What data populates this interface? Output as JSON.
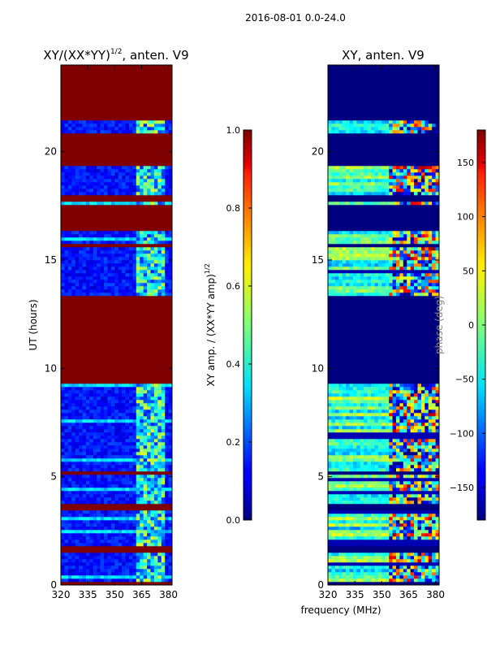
{
  "suptitle": "2016-08-01 0.0-24.0",
  "shared_xlabel": "frequency (MHz)",
  "chart_data": [
    {
      "type": "heatmap",
      "title_main": "XY/(XX*YY)",
      "title_exp": "1/2",
      "title_tail": ", anten. V9",
      "ylabel": "UT (hours)",
      "xlim": [
        320,
        382
      ],
      "ylim": [
        0,
        24
      ],
      "xticks": [
        320,
        335,
        350,
        365,
        380
      ],
      "yticks": [
        0,
        5,
        10,
        15,
        20
      ],
      "colorbar": {
        "label_main": "XY amp. / (XX*YY amp)",
        "label_exp": "1/2",
        "range": [
          0.0,
          1.0
        ],
        "ticks": [
          "0.0",
          "0.2",
          "0.4",
          "0.6",
          "0.8",
          "1.0"
        ],
        "colormap": "jet"
      },
      "flagged_hour_bands": [
        [
          0.0,
          0.2
        ],
        [
          1.55,
          1.75
        ],
        [
          3.45,
          3.7
        ],
        [
          5.15,
          5.3
        ],
        [
          9.3,
          13.4
        ],
        [
          15.6,
          15.75
        ],
        [
          16.4,
          17.5
        ],
        [
          17.7,
          17.95
        ],
        [
          19.3,
          20.8
        ],
        [
          21.5,
          24.0
        ]
      ],
      "bright_freq_band_MHz": [
        362,
        378
      ]
    },
    {
      "type": "heatmap",
      "title": "XY, anten. V9",
      "xlim": [
        320,
        382
      ],
      "ylim": [
        0,
        24
      ],
      "xticks": [
        320,
        335,
        350,
        365,
        380
      ],
      "yticks": [
        0,
        5,
        10,
        15,
        20
      ],
      "colorbar": {
        "label": "phase (deg)",
        "range": [
          -180,
          180
        ],
        "ticks": [
          "−150",
          "−100",
          "−50",
          "0",
          "50",
          "100",
          "150"
        ],
        "colormap": "jet"
      },
      "flagged_hour_bands": [
        [
          0.0,
          0.2
        ],
        [
          1.55,
          1.75
        ],
        [
          3.45,
          3.7
        ],
        [
          5.15,
          5.3
        ],
        [
          9.3,
          13.4
        ],
        [
          15.6,
          15.75
        ],
        [
          16.4,
          17.5
        ],
        [
          17.7,
          17.95
        ],
        [
          19.3,
          20.8
        ],
        [
          21.5,
          24.0
        ]
      ],
      "phase_feature_band_MHz": [
        355,
        382
      ]
    }
  ]
}
